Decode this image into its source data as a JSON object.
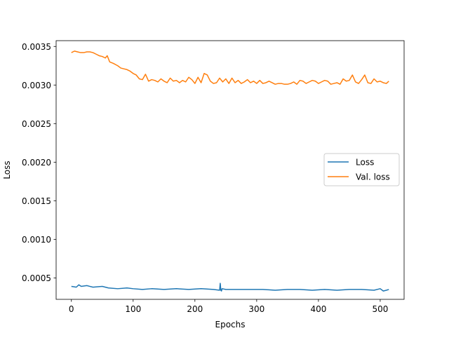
{
  "chart_data": {
    "type": "line",
    "title": "",
    "xlabel": "Epochs",
    "ylabel": "Loss",
    "xlim": [
      -24.7,
      538.7
    ],
    "ylim": [
      0.000222,
      0.003575
    ],
    "xticks": [
      0,
      100,
      200,
      300,
      400,
      500
    ],
    "xtick_labels": [
      "0",
      "100",
      "200",
      "300",
      "400",
      "500"
    ],
    "yticks": [
      0.0005,
      0.001,
      0.0015,
      0.002,
      0.0025,
      0.003,
      0.0035
    ],
    "ytick_labels": [
      "0.0005",
      "0.0010",
      "0.0015",
      "0.0020",
      "0.0025",
      "0.0030",
      "0.0035"
    ],
    "grid": false,
    "legend_position": "center-right",
    "series": [
      {
        "name": "Loss",
        "color": "#1f77b4",
        "x": [
          0,
          8,
          12,
          16,
          25,
          35,
          50,
          60,
          75,
          90,
          100,
          115,
          130,
          150,
          170,
          190,
          210,
          230,
          240,
          241,
          242,
          243,
          244,
          250,
          270,
          290,
          310,
          330,
          350,
          370,
          390,
          410,
          430,
          450,
          470,
          490,
          500,
          505,
          510,
          514
        ],
        "y": [
          0.00039,
          0.00038,
          0.00041,
          0.00039,
          0.0004,
          0.00038,
          0.00039,
          0.00037,
          0.00036,
          0.00037,
          0.00036,
          0.00035,
          0.00036,
          0.00035,
          0.00036,
          0.00035,
          0.00036,
          0.00035,
          0.00034,
          0.00043,
          0.00034,
          0.00033,
          0.00036,
          0.00035,
          0.00035,
          0.00035,
          0.00035,
          0.00034,
          0.00035,
          0.00035,
          0.00034,
          0.00035,
          0.00034,
          0.00035,
          0.00035,
          0.00034,
          0.00036,
          0.00033,
          0.00034,
          0.00035
        ]
      },
      {
        "name": "Val. loss",
        "color": "#ff7f0e",
        "x": [
          0,
          5,
          10,
          15,
          20,
          25,
          30,
          35,
          40,
          45,
          50,
          55,
          58,
          62,
          68,
          75,
          80,
          85,
          90,
          95,
          100,
          105,
          110,
          115,
          120,
          125,
          130,
          135,
          140,
          145,
          150,
          155,
          160,
          165,
          170,
          175,
          180,
          185,
          190,
          195,
          200,
          205,
          210,
          215,
          220,
          225,
          230,
          235,
          240,
          245,
          250,
          255,
          260,
          265,
          270,
          275,
          280,
          285,
          290,
          295,
          300,
          305,
          310,
          315,
          320,
          325,
          330,
          335,
          340,
          345,
          350,
          355,
          360,
          365,
          370,
          375,
          380,
          385,
          390,
          395,
          400,
          405,
          410,
          415,
          420,
          425,
          430,
          435,
          440,
          445,
          450,
          455,
          460,
          465,
          470,
          475,
          480,
          485,
          490,
          495,
          500,
          505,
          510,
          514
        ],
        "y": [
          0.00342,
          0.00344,
          0.00343,
          0.00342,
          0.00342,
          0.00343,
          0.00343,
          0.00342,
          0.0034,
          0.00338,
          0.00337,
          0.00335,
          0.00338,
          0.0033,
          0.00328,
          0.00325,
          0.00322,
          0.00321,
          0.0032,
          0.00318,
          0.00315,
          0.00313,
          0.00308,
          0.00307,
          0.00314,
          0.00305,
          0.00307,
          0.00306,
          0.00304,
          0.00308,
          0.00305,
          0.00303,
          0.00309,
          0.00305,
          0.00306,
          0.00303,
          0.00306,
          0.00304,
          0.0031,
          0.00307,
          0.00302,
          0.0031,
          0.00303,
          0.00315,
          0.00313,
          0.00305,
          0.00302,
          0.00303,
          0.00309,
          0.00304,
          0.00308,
          0.00302,
          0.00309,
          0.00303,
          0.00306,
          0.00302,
          0.00304,
          0.00307,
          0.00303,
          0.00305,
          0.00302,
          0.00306,
          0.00302,
          0.00303,
          0.00305,
          0.00303,
          0.00301,
          0.00302,
          0.00302,
          0.00301,
          0.00301,
          0.00302,
          0.00304,
          0.00301,
          0.00306,
          0.00305,
          0.00302,
          0.00304,
          0.00306,
          0.00305,
          0.00302,
          0.00304,
          0.00306,
          0.00305,
          0.00301,
          0.00302,
          0.00303,
          0.00301,
          0.00308,
          0.00305,
          0.00306,
          0.00313,
          0.00304,
          0.00302,
          0.00307,
          0.00313,
          0.00303,
          0.00302,
          0.00308,
          0.00304,
          0.00305,
          0.00303,
          0.00302,
          0.00305
        ]
      }
    ]
  }
}
